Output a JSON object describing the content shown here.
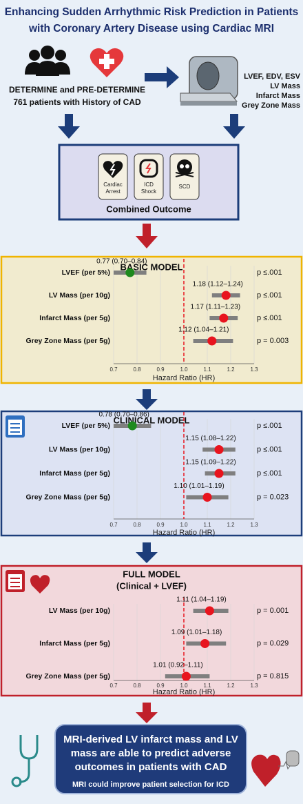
{
  "header": {
    "title_lines": [
      "Enhancing Sudden Arrhythmic Risk Prediction in Patients",
      "with Coronary Artery Disease using Cardiac MRI"
    ]
  },
  "cohort": {
    "lines": [
      "DETERMINE and PRE-DETERMINE",
      "761 patients with History of CAD"
    ]
  },
  "mri_measures": [
    "LVEF, EDV, ESV",
    "LV Mass",
    "Infarct Mass",
    "Grey Zone Mass"
  ],
  "outcomes": {
    "items": [
      [
        "Cardiac",
        "Arrest"
      ],
      [
        "ICD",
        "Shock"
      ],
      [
        "SCD"
      ]
    ],
    "label": "Combined Outcome"
  },
  "chart_data": [
    {
      "type": "forest",
      "title": "BASIC MODEL",
      "categories": [
        "LVEF (per 5%)",
        "LV Mass (per 10g)",
        "Infarct Mass (per 5g)",
        "Grey Zone Mass (per 5g)"
      ],
      "values": [
        0.77,
        1.18,
        1.17,
        1.12
      ],
      "lower": [
        0.7,
        1.12,
        1.11,
        1.04
      ],
      "upper": [
        0.84,
        1.24,
        1.23,
        1.21
      ],
      "value_labels": [
        "0.77 (0.70–0.84)",
        "1.18 (1.12–1.24)",
        "1.17 (1.11–1.23)",
        "1.12 (1.04–1.21)"
      ],
      "p_values": [
        "p ≤.001",
        "p ≤.001",
        "p ≤.001",
        "p = 0.003"
      ],
      "marker_colors": [
        "#1e8a1e",
        "#e8141e",
        "#e8141e",
        "#e8141e"
      ],
      "xlim": [
        0.7,
        1.3
      ],
      "xticks": [
        0.7,
        0.8,
        0.9,
        {
          "value": 1,
          "label": "1.0"
        },
        1.1,
        1.2,
        1.3
      ],
      "xlabel": "Hazard Ratio (HR)",
      "reference_line": 1,
      "grid": true
    },
    {
      "type": "forest",
      "title": "CLINICAL MODEL",
      "categories": [
        "LVEF (per 5%)",
        "LV Mass (per 10g)",
        "Infarct Mass (per 5g)",
        "Grey Zone Mass (per 5g)"
      ],
      "values": [
        0.78,
        1.15,
        1.15,
        1.1
      ],
      "lower": [
        0.7,
        1.08,
        1.09,
        1.01
      ],
      "upper": [
        0.86,
        1.22,
        1.22,
        1.19
      ],
      "value_labels": [
        "0.78 (0.70–0.86)",
        "1.15 (1.08–1.22)",
        "1.15 (1.09–1.22)",
        "1.10 (1.01–1.19)"
      ],
      "p_values": [
        "p ≤.001",
        "p ≤.001",
        "p ≤.001",
        "p = 0.023"
      ],
      "marker_colors": [
        "#1e8a1e",
        "#e8141e",
        "#e8141e",
        "#e8141e"
      ],
      "xlim": [
        0.7,
        1.3
      ],
      "xticks": [
        0.7,
        0.8,
        0.9,
        {
          "value": 1,
          "label": "1.0"
        },
        1.1,
        1.2,
        1.3
      ],
      "xlabel": "Hazard Ratio (HR)",
      "reference_line": 1,
      "grid": true
    },
    {
      "type": "forest",
      "title": "FULL MODEL",
      "subtitle": "(Clinical + LVEF)",
      "categories": [
        "LV Mass (per 10g)",
        "Infarct Mass (per 5g)",
        "Grey Zone Mass (per 5g)"
      ],
      "values": [
        1.11,
        1.09,
        1.01
      ],
      "lower": [
        1.04,
        1.01,
        0.92
      ],
      "upper": [
        1.19,
        1.18,
        1.11
      ],
      "value_labels": [
        "1.11 (1.04–1.19)",
        "1.09 (1.01–1.18)",
        "1.01 (0.92–1.11)"
      ],
      "p_values": [
        "p = 0.001",
        "p = 0.029",
        "p = 0.815"
      ],
      "marker_colors": [
        "#e8141e",
        "#e8141e",
        "#e8141e"
      ],
      "xlim": [
        0.7,
        1.3
      ],
      "xticks": [
        0.7,
        0.8,
        0.9,
        {
          "value": 1,
          "label": "1.0"
        },
        1.1,
        1.2,
        1.3
      ],
      "xlabel": "Hazard Ratio (HR)",
      "reference_line": 1,
      "grid": true
    }
  ],
  "conclusion": {
    "lines": [
      "MRI-derived LV infarct mass and LV",
      "mass are able to predict adverse",
      "outcomes in patients with CAD"
    ],
    "note": "MRI could improve patient selection for ICD"
  }
}
